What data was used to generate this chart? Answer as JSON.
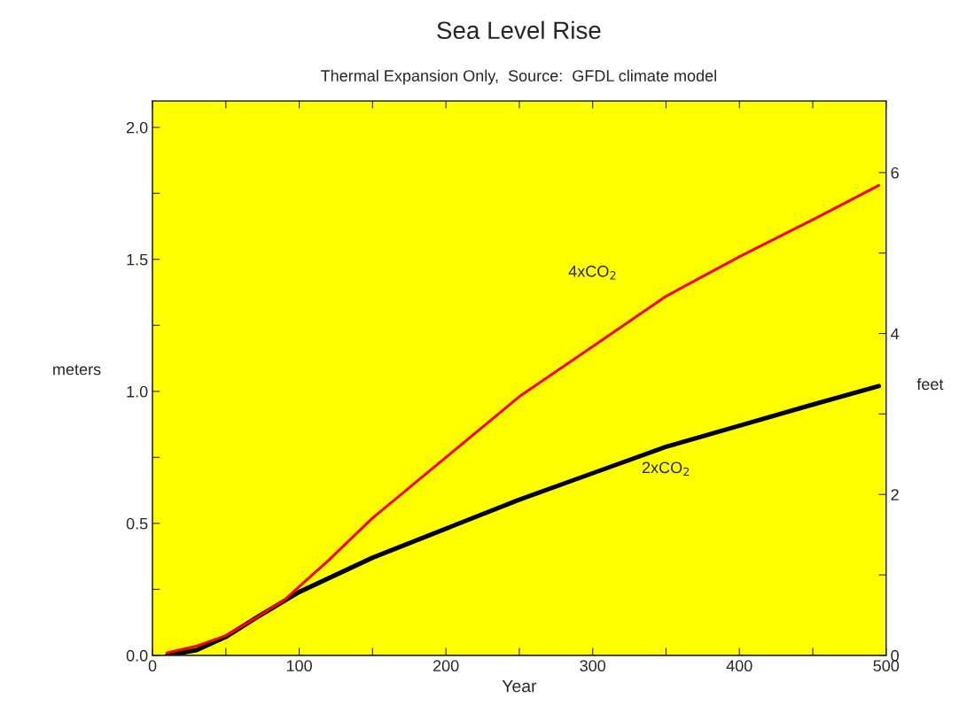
{
  "chart_data": {
    "type": "line",
    "title": "Sea Level Rise",
    "subtitle": "Thermal Expansion Only,  Source:  GFDL climate model",
    "xlabel": "Year",
    "ylabel": "meters",
    "y2label": "feet",
    "xlim": [
      0,
      500
    ],
    "xticks": [
      0,
      {
        "value": 50,
        "label": null
      },
      100,
      {
        "value": 150,
        "label": null
      },
      200,
      {
        "value": 250,
        "label": null
      },
      300,
      {
        "value": 350,
        "label": null
      },
      400,
      {
        "value": 450,
        "label": null
      },
      500
    ],
    "ylim": [
      0,
      2.1
    ],
    "yticks": [
      "0.0",
      {
        "value": 0.25,
        "label": null
      },
      0.5,
      {
        "value": 0.75,
        "label": null
      },
      "1.0",
      {
        "value": 1.25,
        "label": null
      },
      1.5,
      {
        "value": 1.75,
        "label": null
      },
      "2.0"
    ],
    "y2lim": [
      0,
      6.89
    ],
    "y2ticks": [
      0,
      {
        "value": 1,
        "label": null
      },
      2,
      {
        "value": 3,
        "label": null
      },
      4,
      {
        "value": 5,
        "label": null
      },
      6
    ],
    "grid": false,
    "legend": false,
    "marker": "none",
    "line_style": "solid",
    "series": [
      {
        "name": "4xCO$_{2}$",
        "color": "#ff0000",
        "x": [
          10,
          30,
          50,
          70,
          90,
          100,
          120,
          150,
          200,
          250,
          300,
          350,
          400,
          450,
          495
        ],
        "values": [
          0.01,
          0.035,
          0.075,
          0.14,
          0.21,
          0.26,
          0.36,
          0.52,
          0.75,
          0.98,
          1.17,
          1.36,
          1.51,
          1.65,
          1.78
        ]
      },
      {
        "name": "2xCO$_{2}$",
        "color": "#000000",
        "x": [
          10,
          30,
          50,
          70,
          100,
          150,
          200,
          250,
          300,
          350,
          400,
          450,
          495
        ],
        "values": [
          0,
          0.02,
          0.07,
          0.14,
          0.24,
          0.37,
          0.48,
          0.59,
          0.69,
          0.79,
          0.87,
          0.95,
          1.02
        ]
      }
    ]
  }
}
